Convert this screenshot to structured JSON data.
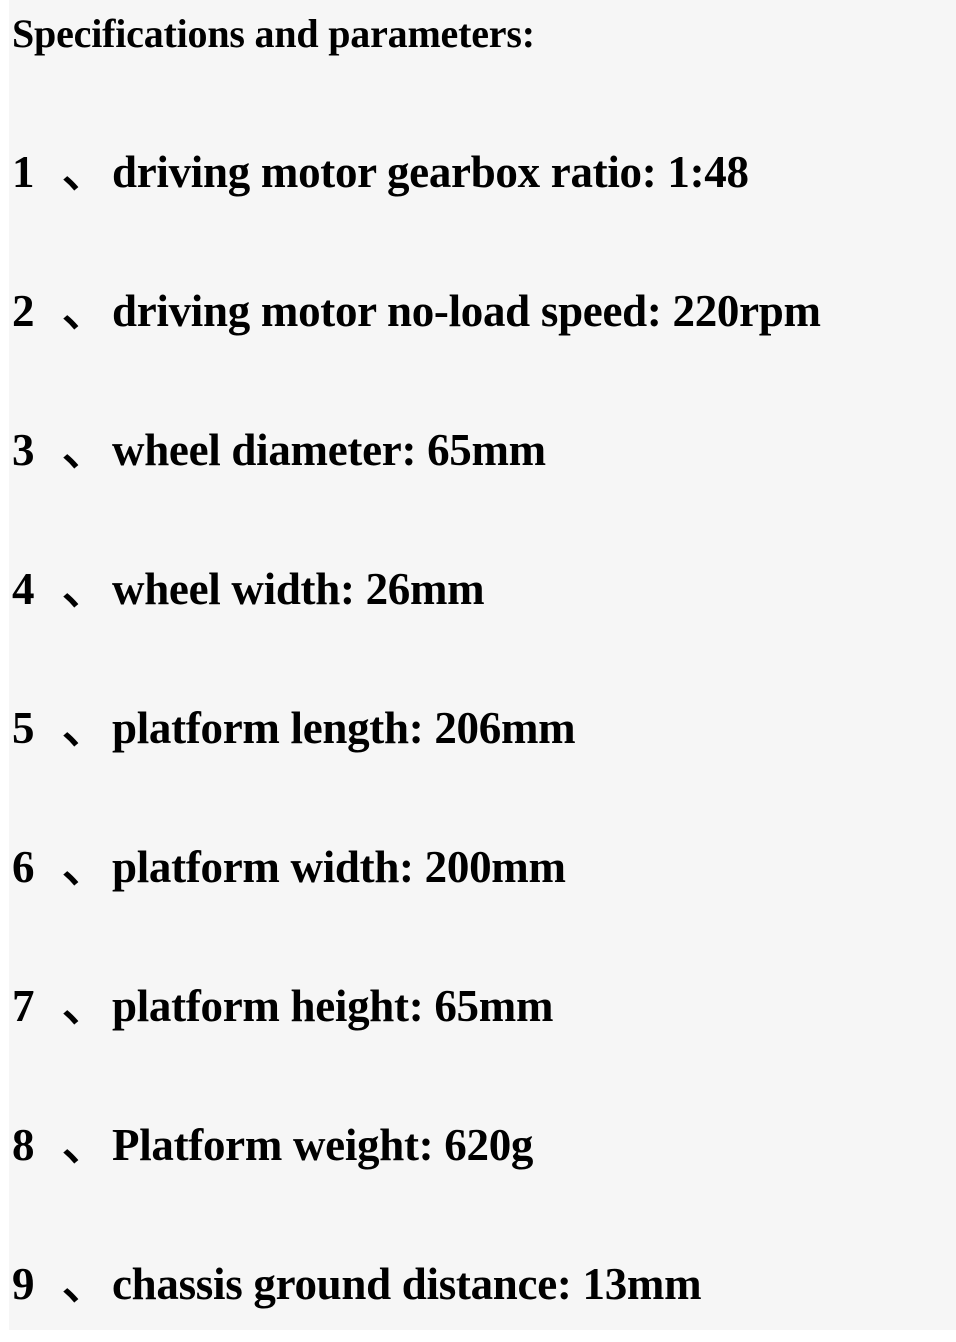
{
  "heading": "Specifications and parameters:",
  "specs": [
    {
      "num": "1",
      "sep": "、",
      "text": "driving motor gearbox ratio: 1:48"
    },
    {
      "num": "2 ",
      "sep": "、",
      "text": "driving motor no-load speed: 220rpm"
    },
    {
      "num": "3 ",
      "sep": "、",
      "text": "wheel diameter: 65mm"
    },
    {
      "num": "4 ",
      "sep": "、",
      "text": "wheel width: 26mm"
    },
    {
      "num": "5 ",
      "sep": "、",
      "text": "platform length: 206mm"
    },
    {
      "num": "6 ",
      "sep": "、",
      "text": "platform width: 200mm"
    },
    {
      "num": "7 ",
      "sep": "、",
      "text": "platform height: 65mm"
    },
    {
      "num": "8 ",
      "sep": "、",
      "text": "Platform weight: 620g"
    },
    {
      "num": "9 ",
      "sep": "、",
      "text": "chassis ground distance: 13mm"
    }
  ]
}
